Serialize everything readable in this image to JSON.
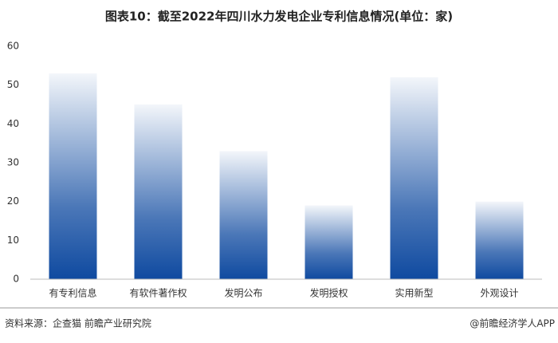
{
  "chart_data": {
    "type": "bar",
    "title": "图表10：截至2022年四川水力发电企业专利信息情况(单位：家)",
    "categories": [
      "有专利信息",
      "有软件著作权",
      "发明公布",
      "发明授权",
      "实用新型",
      "外观设计"
    ],
    "values": [
      53,
      45,
      33,
      19,
      52,
      20
    ],
    "color": "#0f4aa0",
    "ylim": [
      0,
      60
    ],
    "yticks": [
      0,
      10,
      20,
      30,
      40,
      50,
      60
    ],
    "grid": false,
    "source": "资料来源：企查猫 前瞻产业研究院",
    "credit": "@前瞻经济学人APP"
  }
}
